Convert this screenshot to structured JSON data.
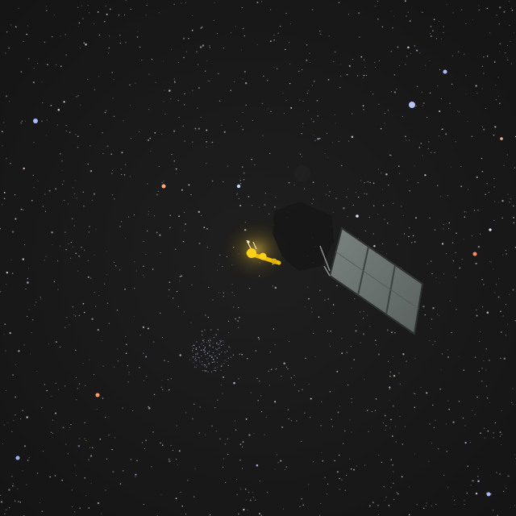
{
  "scene": {
    "subject": "satellite",
    "background": "star-field",
    "colors": {
      "sky": "#1b1b1b",
      "sky_edge": "#141414",
      "panel_face": "#6e7673",
      "panel_frame": "#2e3230",
      "panel_grid": "#3c4240",
      "body_glow": "#ffcc33",
      "body_core": "#f4d000",
      "blue_star": "#9fb3ff",
      "orange_star": "#ff9a66",
      "white_star": "#ffffff"
    },
    "labels": []
  }
}
